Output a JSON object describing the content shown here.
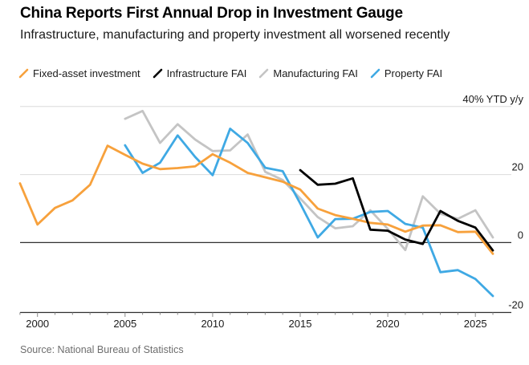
{
  "header": {
    "title": "China Reports First Annual Drop in Investment Gauge",
    "subtitle": "Infrastructure, manufacturing and property investment all worsened recently"
  },
  "legend": [
    {
      "label": "Fixed-asset investment",
      "color": "#F7A13C"
    },
    {
      "label": "Infrastructure FAI",
      "color": "#000000"
    },
    {
      "label": "Manufacturing FAI",
      "color": "#C4C4C4"
    },
    {
      "label": "Property FAI",
      "color": "#3FA9E4"
    }
  ],
  "source": "Source: National Bureau of Statistics",
  "chart_data": {
    "type": "line",
    "title": "China Reports First Annual Drop in Investment Gauge",
    "unit_label": "40% YTD y/y",
    "x_axis": {
      "range": [
        1998.8,
        2027.0
      ],
      "ticks_major": [
        2000,
        2005,
        2010,
        2015,
        2020,
        2025
      ],
      "minor_tick_years": [
        1999,
        2026
      ],
      "note": "annual data; value for year Y is plotted at the year-end position Y+1; final point is latest 2025 YTD reading"
    },
    "y_axis": {
      "range": [
        -22,
        42
      ],
      "gridlines": [
        40,
        20,
        0
      ],
      "baseline": -20.5,
      "labels": [
        {
          "value": 40,
          "label": "40% YTD y/y"
        },
        {
          "value": 20,
          "label": "20"
        },
        {
          "value": 0,
          "label": "0"
        },
        {
          "value": -20,
          "label": "-20"
        }
      ]
    },
    "series": [
      {
        "id": "manufacturing-fai",
        "name": "Manufacturing FAI",
        "color": "#C4C4C4",
        "points": [
          [
            2005,
            36.4
          ],
          [
            2006,
            38.7
          ],
          [
            2007,
            29.3
          ],
          [
            2008,
            34.8
          ],
          [
            2009,
            30.3
          ],
          [
            2010,
            26.9
          ],
          [
            2011,
            27.1
          ],
          [
            2012,
            31.8
          ],
          [
            2013,
            20.8
          ],
          [
            2014,
            18.4
          ],
          [
            2015,
            13.0
          ],
          [
            2016,
            7.5
          ],
          [
            2017,
            4.2
          ],
          [
            2018,
            4.8
          ],
          [
            2019,
            9.5
          ],
          [
            2020,
            4.0
          ],
          [
            2021,
            -2.2
          ],
          [
            2022,
            13.6
          ],
          [
            2023,
            8.5
          ],
          [
            2024,
            7.0
          ],
          [
            2025,
            9.5
          ],
          [
            2026,
            1.5
          ]
        ]
      },
      {
        "id": "property-fai",
        "name": "Property FAI",
        "color": "#3FA9E4",
        "points": [
          [
            2005,
            28.6
          ],
          [
            2006,
            20.5
          ],
          [
            2007,
            23.5
          ],
          [
            2008,
            31.5
          ],
          [
            2009,
            25.2
          ],
          [
            2010,
            19.8
          ],
          [
            2011,
            33.5
          ],
          [
            2012,
            29.3
          ],
          [
            2013,
            22.0
          ],
          [
            2014,
            21.0
          ],
          [
            2015,
            11.5
          ],
          [
            2016,
            1.5
          ],
          [
            2017,
            6.9
          ],
          [
            2018,
            7.0
          ],
          [
            2019,
            9.0
          ],
          [
            2020,
            9.3
          ],
          [
            2021,
            5.5
          ],
          [
            2022,
            4.4
          ],
          [
            2023,
            -8.7
          ],
          [
            2024,
            -8.1
          ],
          [
            2025,
            -10.7
          ],
          [
            2026,
            -15.7
          ]
        ]
      },
      {
        "id": "fixed-asset-investment",
        "name": "Fixed-asset investment",
        "color": "#F7A13C",
        "points": [
          [
            1999,
            17.4
          ],
          [
            2000,
            5.3
          ],
          [
            2001,
            10.2
          ],
          [
            2002,
            12.4
          ],
          [
            2003,
            17.0
          ],
          [
            2004,
            28.5
          ],
          [
            2005,
            25.8
          ],
          [
            2006,
            23.2
          ],
          [
            2007,
            21.6
          ],
          [
            2008,
            21.9
          ],
          [
            2009,
            22.4
          ],
          [
            2010,
            26.0
          ],
          [
            2011,
            23.5
          ],
          [
            2012,
            20.5
          ],
          [
            2013,
            19.2
          ],
          [
            2014,
            17.9
          ],
          [
            2015,
            15.6
          ],
          [
            2016,
            10.0
          ],
          [
            2017,
            8.1
          ],
          [
            2018,
            7.0
          ],
          [
            2019,
            5.8
          ],
          [
            2020,
            5.3
          ],
          [
            2021,
            3.2
          ],
          [
            2022,
            5.0
          ],
          [
            2023,
            5.1
          ],
          [
            2024,
            3.1
          ],
          [
            2025,
            3.2
          ],
          [
            2026,
            -3.3
          ]
        ]
      },
      {
        "id": "infrastructure-fai",
        "name": "Infrastructure FAI",
        "color": "#000000",
        "points": [
          [
            2015,
            21.3
          ],
          [
            2016,
            17.0
          ],
          [
            2017,
            17.3
          ],
          [
            2018,
            18.9
          ],
          [
            2019,
            3.8
          ],
          [
            2020,
            3.5
          ],
          [
            2021,
            0.9
          ],
          [
            2022,
            -0.4
          ],
          [
            2023,
            9.3
          ],
          [
            2024,
            6.4
          ],
          [
            2025,
            4.4
          ],
          [
            2026,
            -2.3
          ]
        ]
      }
    ],
    "legend_position": "top",
    "grid": "horizontal-only"
  }
}
